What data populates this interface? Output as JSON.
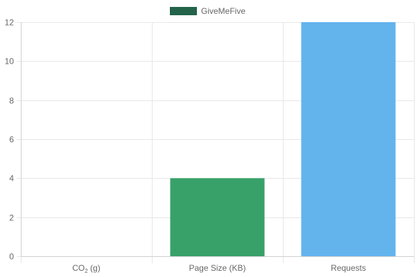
{
  "chart_data": {
    "type": "bar",
    "legend": {
      "position": "top",
      "label": "GiveMeFive",
      "swatch_color": "#22634a"
    },
    "categories": [
      {
        "main": "CO",
        "sub": "2",
        "suffix": " (g)"
      },
      {
        "main": "Page Size (KB)",
        "sub": "",
        "suffix": ""
      },
      {
        "main": "Requests",
        "sub": "",
        "suffix": ""
      }
    ],
    "series": [
      {
        "name": "GiveMeFive",
        "values": [
          0,
          4,
          12
        ],
        "colors": [
          "#2e8b57",
          "#38a169",
          "#63b3ed"
        ]
      }
    ],
    "ylim": [
      0,
      12
    ],
    "yticks": [
      0,
      2,
      4,
      6,
      8,
      10,
      12
    ],
    "grid": true,
    "xlabel": "",
    "ylabel": "",
    "title": ""
  }
}
